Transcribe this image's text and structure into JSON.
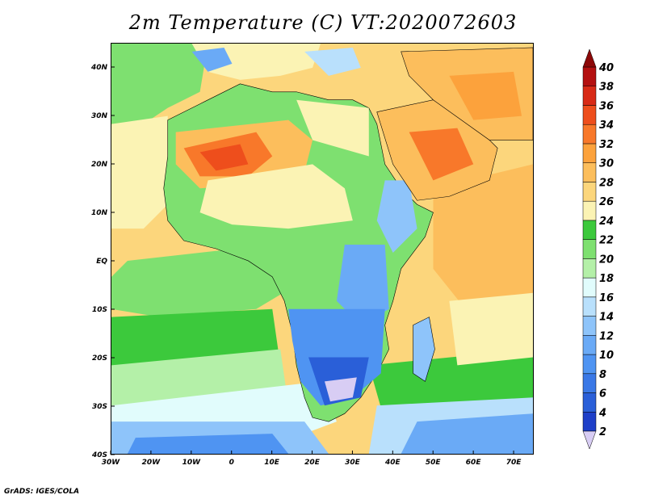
{
  "title": "2m Temperature (C)  VT:2020072603",
  "footer": "GrADS: IGES/COLA",
  "map": {
    "projection": "lat-lon",
    "lon_range": [
      -30,
      75
    ],
    "lat_range": [
      -40,
      45
    ],
    "lon_ticks": [
      {
        "value": -30,
        "label": "30W"
      },
      {
        "value": -20,
        "label": "20W"
      },
      {
        "value": -10,
        "label": "10W"
      },
      {
        "value": 0,
        "label": "0"
      },
      {
        "value": 10,
        "label": "10E"
      },
      {
        "value": 20,
        "label": "20E"
      },
      {
        "value": 30,
        "label": "30E"
      },
      {
        "value": 40,
        "label": "40E"
      },
      {
        "value": 50,
        "label": "50E"
      },
      {
        "value": 60,
        "label": "60E"
      },
      {
        "value": 70,
        "label": "70E"
      }
    ],
    "lat_ticks": [
      {
        "value": 40,
        "label": "40N"
      },
      {
        "value": 30,
        "label": "30N"
      },
      {
        "value": 20,
        "label": "20N"
      },
      {
        "value": 10,
        "label": "10N"
      },
      {
        "value": 0,
        "label": "EQ"
      },
      {
        "value": -10,
        "label": "10S"
      },
      {
        "value": -20,
        "label": "20S"
      },
      {
        "value": -30,
        "label": "30S"
      },
      {
        "value": -40,
        "label": "40S"
      }
    ]
  },
  "colorbar": {
    "levels": [
      "2",
      "4",
      "6",
      "8",
      "10",
      "12",
      "14",
      "16",
      "18",
      "20",
      "22",
      "24",
      "26",
      "28",
      "30",
      "32",
      "34",
      "36",
      "38",
      "40"
    ],
    "colors": [
      "#1a0a8a",
      "#1e3fc8",
      "#2a5fd8",
      "#3a78e6",
      "#4f94f2",
      "#6aaaf6",
      "#8ec4fa",
      "#b9e0fc",
      "#e1fcfc",
      "#b4f0a8",
      "#7ee070",
      "#3cc93c",
      "#fbf3b4",
      "#fcd67c",
      "#fcbe5c",
      "#fca23c",
      "#f8782a",
      "#ee4e1c",
      "#d82a16",
      "#b41010",
      "#8c0808"
    ],
    "min_color": "#d8cdf4",
    "max_color": "#8c0808"
  }
}
